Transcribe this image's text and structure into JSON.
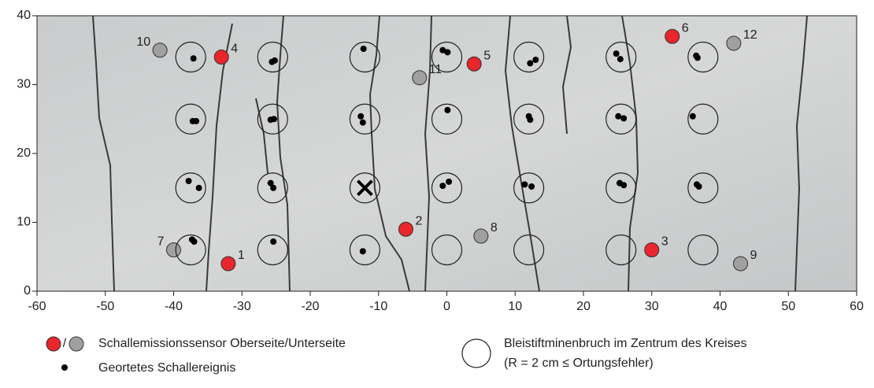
{
  "chart_data": {
    "type": "scatter",
    "xlim": [
      -60,
      60
    ],
    "ylim": [
      0,
      40
    ],
    "xticks": [
      -60,
      -50,
      -40,
      -30,
      -20,
      -10,
      0,
      10,
      20,
      30,
      40,
      50,
      60
    ],
    "yticks": [
      0,
      10,
      20,
      30,
      40
    ],
    "legend_separator": "/",
    "series": [
      {
        "name": "Schallemissionssensor Oberseite/Unterseite",
        "kind": "sensor",
        "color": "#e8262b",
        "labels": [
          "1",
          "2",
          "3",
          "4",
          "5",
          "6"
        ],
        "x": [
          -32,
          -6,
          30,
          -33,
          4,
          33
        ],
        "values": [
          4,
          9,
          6,
          34,
          33,
          37
        ]
      },
      {
        "kind": "sensor",
        "color": "#a0a0a0",
        "labels": [
          "7",
          "8",
          "9",
          "10",
          "11",
          "12"
        ],
        "x": [
          -40,
          5,
          43,
          -42,
          -4,
          42
        ],
        "values": [
          6,
          8,
          4,
          35,
          31,
          36
        ]
      },
      {
        "name": "Bleistiftminenbruch im Zentrum des Kreises",
        "note": "(R = 2 cm ≤ Ortungsfehler)",
        "kind": "ring",
        "color": "#ffffff",
        "x": [
          -37.5,
          -25.5,
          -12,
          0,
          12,
          25.5,
          37.5,
          -37.5,
          -25.5,
          -12,
          0,
          12,
          25.5,
          37.5,
          -37.5,
          -25.5,
          -12,
          0,
          12,
          25.5,
          37.5,
          -37.5,
          -25.5,
          -12,
          0,
          12,
          25.5,
          37.5
        ],
        "values": [
          6,
          6,
          6,
          6,
          6,
          6,
          6,
          15,
          15,
          15,
          15,
          15,
          15,
          15,
          25,
          25,
          25,
          25,
          25,
          25,
          25,
          34,
          34,
          34,
          34,
          34,
          34,
          34
        ]
      },
      {
        "name": "Geortetes Schallereignis",
        "kind": "dot",
        "color": "#000000",
        "x": [
          -37.1,
          -37.2,
          -36.7,
          -37.8,
          -36.3,
          -37.3,
          -37.0,
          -25.6,
          -25.2,
          -25.8,
          -25.3,
          -25.8,
          -25.4,
          -25.4,
          -12.2,
          -12.6,
          -12.3,
          -12.3,
          -0.6,
          0.1,
          0.1,
          -0.6,
          0.3,
          12.2,
          13.0,
          12.0,
          12.2,
          11.4,
          12.4,
          24.8,
          25.4,
          25.1,
          25.9,
          25.3,
          25.9,
          36.5,
          36.7,
          36.0,
          36.6,
          36.9
        ],
        "values": [
          33.8,
          24.7,
          24.7,
          16.0,
          15.0,
          7.5,
          7.2,
          33.3,
          33.5,
          24.9,
          25.0,
          15.7,
          15.0,
          7.2,
          35.2,
          25.4,
          24.5,
          5.8,
          35.0,
          34.7,
          26.3,
          15.3,
          15.9,
          33.1,
          33.6,
          25.4,
          24.9,
          15.5,
          15.2,
          34.5,
          33.7,
          25.4,
          25.1,
          15.7,
          15.4,
          34.2,
          33.9,
          25.4,
          15.5,
          15.2
        ]
      }
    ],
    "cross": {
      "x": -12,
      "y": 15
    }
  }
}
